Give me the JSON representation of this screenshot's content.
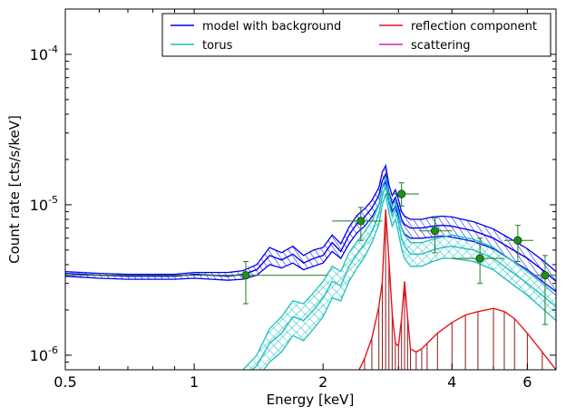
{
  "chart_data": {
    "type": "line",
    "xlabel": "Energy [keV]",
    "ylabel": "Count rate [cts/s/keV]",
    "xscale": "log",
    "yscale": "log",
    "xlim": [
      0.5,
      7.0
    ],
    "ylim": [
      8e-07,
      0.0002
    ],
    "grid": false,
    "legend_placement": "top-right",
    "legend_columns": 2,
    "x_ticks": [
      {
        "value": 0.5,
        "label": "0.5"
      },
      {
        "value": 1,
        "label": "1"
      },
      {
        "value": 2,
        "label": "2"
      },
      {
        "value": 4,
        "label": "4"
      },
      {
        "value": 6,
        "label": "6"
      }
    ],
    "y_ticks": [
      {
        "value": 1e-06,
        "base": "10",
        "exp": "-6"
      },
      {
        "value": 1e-05,
        "base": "10",
        "exp": "-5"
      },
      {
        "value": 0.0001,
        "base": "10",
        "exp": "-4"
      }
    ],
    "series": [
      {
        "name": "model with background",
        "color": "#0000ee",
        "band": "hatched",
        "x": [
          0.5,
          0.6,
          0.7,
          0.8,
          0.9,
          1.0,
          1.1,
          1.2,
          1.3,
          1.4,
          1.5,
          1.6,
          1.7,
          1.8,
          1.9,
          2.0,
          2.1,
          2.2,
          2.3,
          2.4,
          2.5,
          2.6,
          2.7,
          2.75,
          2.8,
          2.85,
          2.9,
          2.95,
          3.0,
          3.05,
          3.1,
          3.2,
          3.4,
          3.6,
          3.8,
          4.0,
          4.5,
          5.0,
          5.5,
          6.0,
          6.5,
          7.0
        ],
        "y": [
          3.5e-06,
          3.4e-06,
          3.35e-06,
          3.35e-06,
          3.35e-06,
          3.45e-06,
          3.4e-06,
          3.35e-06,
          3.45e-06,
          3.7e-06,
          4.6e-06,
          4.3e-06,
          4.7e-06,
          4.1e-06,
          4.4e-06,
          4.6e-06,
          5.6e-06,
          4.9e-06,
          6.3e-06,
          7.5e-06,
          8.3e-06,
          9.5e-06,
          1.15e-05,
          1.45e-05,
          1.6e-05,
          1.2e-05,
          1.02e-05,
          1.12e-05,
          9.6e-06,
          8e-06,
          7.4e-06,
          7e-06,
          7e-06,
          7.2e-06,
          7.3e-06,
          7.2e-06,
          6.7e-06,
          6e-06,
          5.1e-06,
          4.4e-06,
          3.7e-06,
          3.1e-06
        ],
        "lower": [
          3.35e-06,
          3.25e-06,
          3.2e-06,
          3.2e-06,
          3.2e-06,
          3.25e-06,
          3.2e-06,
          3.15e-06,
          3.2e-06,
          3.4e-06,
          4e-06,
          3.8e-06,
          4.1e-06,
          3.7e-06,
          3.9e-06,
          4.1e-06,
          4.9e-06,
          4.4e-06,
          5.5e-06,
          6.5e-06,
          7.2e-06,
          8.3e-06,
          1e-05,
          1.3e-05,
          1.42e-05,
          1.05e-05,
          9e-06,
          9.8e-06,
          8.4e-06,
          7e-06,
          6.4e-06,
          6e-06,
          6e-06,
          6.1e-06,
          6.2e-06,
          6.1e-06,
          5.7e-06,
          5.1e-06,
          4.3e-06,
          3.7e-06,
          3.1e-06,
          2.65e-06
        ],
        "upper": [
          3.6e-06,
          3.5e-06,
          3.45e-06,
          3.45e-06,
          3.45e-06,
          3.55e-06,
          3.55e-06,
          3.55e-06,
          3.65e-06,
          4e-06,
          5.2e-06,
          4.8e-06,
          5.3e-06,
          4.6e-06,
          5e-06,
          5.2e-06,
          6.3e-06,
          5.5e-06,
          7.1e-06,
          8.5e-06,
          9.4e-06,
          1.07e-05,
          1.3e-05,
          1.65e-05,
          1.82e-05,
          1.36e-05,
          1.15e-05,
          1.26e-05,
          1.08e-05,
          9e-06,
          8.4e-06,
          8e-06,
          8e-06,
          8.3e-06,
          8.4e-06,
          8.3e-06,
          7.7e-06,
          6.9e-06,
          5.9e-06,
          5.1e-06,
          4.3e-06,
          3.6e-06
        ]
      },
      {
        "name": "torus",
        "color": "#1fbfbf",
        "band": "crosshatched",
        "x": [
          1.3,
          1.4,
          1.5,
          1.6,
          1.7,
          1.8,
          1.9,
          2.0,
          2.1,
          2.2,
          2.3,
          2.4,
          2.5,
          2.6,
          2.7,
          2.75,
          2.8,
          2.85,
          2.9,
          2.95,
          3.0,
          3.05,
          3.1,
          3.2,
          3.4,
          3.6,
          3.8,
          4.0,
          4.5,
          5.0,
          5.5,
          6.0,
          6.5,
          7.0
        ],
        "y": [
          7e-07,
          8.5e-07,
          1.2e-06,
          1.4e-06,
          1.8e-06,
          1.7e-06,
          2e-06,
          2.4e-06,
          3.1e-06,
          2.9e-06,
          3.9e-06,
          4.7e-06,
          5.5e-06,
          6.6e-06,
          8.7e-06,
          1.15e-05,
          1.35e-05,
          1.02e-05,
          8.4e-06,
          9.3e-06,
          7.6e-06,
          6e-06,
          5.3e-06,
          4.7e-06,
          4.7e-06,
          5e-06,
          5.2e-06,
          5.3e-06,
          5e-06,
          4.4e-06,
          3.6e-06,
          3e-06,
          2.5e-06,
          2.1e-06
        ],
        "lower": [
          6e-07,
          7e-07,
          9e-07,
          1.05e-06,
          1.35e-06,
          1.25e-06,
          1.5e-06,
          1.8e-06,
          2.4e-06,
          2.3e-06,
          3.1e-06,
          3.8e-06,
          4.5e-06,
          5.6e-06,
          7.4e-06,
          1e-05,
          1.18e-05,
          8.8e-06,
          7.2e-06,
          8e-06,
          6.5e-06,
          5.1e-06,
          4.4e-06,
          3.9e-06,
          3.9e-06,
          4.2e-06,
          4.4e-06,
          4.4e-06,
          4.2e-06,
          3.7e-06,
          3e-06,
          2.5e-06,
          2.05e-06,
          1.7e-06
        ],
        "upper": [
          8e-07,
          1e-06,
          1.5e-06,
          1.8e-06,
          2.3e-06,
          2.2e-06,
          2.6e-06,
          3.1e-06,
          3.9e-06,
          3.6e-06,
          4.8e-06,
          5.7e-06,
          6.6e-06,
          7.8e-06,
          1e-05,
          1.3e-05,
          1.53e-05,
          1.17e-05,
          9.7e-06,
          1.07e-05,
          8.8e-06,
          7e-06,
          6.3e-06,
          5.6e-06,
          5.6e-06,
          5.9e-06,
          6.1e-06,
          6.3e-06,
          5.9e-06,
          5.2e-06,
          4.3e-06,
          3.6e-06,
          3e-06,
          2.5e-06
        ]
      },
      {
        "name": "reflection component",
        "color": "#e8141a",
        "band": "stems",
        "stem_color": "#8b1a1a",
        "x": [
          2.3,
          2.4,
          2.5,
          2.6,
          2.7,
          2.75,
          2.8,
          2.85,
          2.9,
          2.95,
          3.0,
          3.05,
          3.1,
          3.15,
          3.2,
          3.3,
          3.4,
          3.5,
          3.7,
          4.0,
          4.3,
          4.6,
          5.0,
          5.3,
          5.6,
          6.0,
          6.5,
          7.0
        ],
        "y": [
          6e-07,
          7.5e-07,
          9.5e-07,
          1.3e-06,
          2.1e-06,
          3.1e-06,
          9.3e-06,
          4.3e-06,
          1.9e-06,
          1.2e-06,
          1.15e-06,
          1.75e-06,
          3.1e-06,
          1.8e-06,
          1.1e-06,
          1.05e-06,
          1.1e-06,
          1.2e-06,
          1.4e-06,
          1.65e-06,
          1.85e-06,
          1.95e-06,
          2.05e-06,
          1.95e-06,
          1.75e-06,
          1.4e-06,
          1.05e-06,
          8e-07
        ]
      },
      {
        "name": "scattering",
        "color": "#cc22cc",
        "x": [],
        "y": []
      }
    ],
    "data_points": {
      "color": "#1f7a1f",
      "points": [
        {
          "x": 1.32,
          "y": 3.4e-06,
          "xlo": 0.5,
          "xhi": 2.05,
          "ylo": 2.2e-06,
          "yhi": 4.2e-06
        },
        {
          "x": 2.45,
          "y": 7.8e-06,
          "xlo": 2.1,
          "xhi": 2.75,
          "ylo": 5.8e-06,
          "yhi": 9.6e-06
        },
        {
          "x": 3.05,
          "y": 1.18e-05,
          "xlo": 2.8,
          "xhi": 3.35,
          "ylo": 9.8e-06,
          "yhi": 1.4e-05
        },
        {
          "x": 3.65,
          "y": 6.7e-06,
          "xlo": 3.35,
          "xhi": 4.0,
          "ylo": 4.8e-06,
          "yhi": 8.2e-06
        },
        {
          "x": 4.65,
          "y": 4.4e-06,
          "xlo": 4.0,
          "xhi": 5.3,
          "ylo": 3e-06,
          "yhi": 6e-06
        },
        {
          "x": 5.7,
          "y": 5.8e-06,
          "xlo": 5.3,
          "xhi": 6.2,
          "ylo": 4.2e-06,
          "yhi": 7.3e-06
        },
        {
          "x": 6.6,
          "y": 3.4e-06,
          "xlo": 6.2,
          "xhi": 7.0,
          "ylo": 1.6e-06,
          "yhi": 4.6e-06
        }
      ]
    }
  }
}
